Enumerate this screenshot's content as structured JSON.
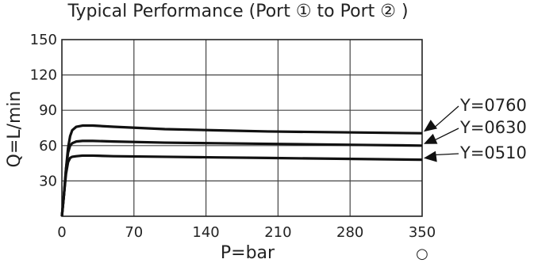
{
  "chart_data": {
    "type": "line",
    "title": "Typical Performance (Port ① to Port ② )",
    "xlabel": "P=bar",
    "ylabel": "Q=L/min",
    "xlim": [
      0,
      350
    ],
    "ylim": [
      0,
      150
    ],
    "x_ticks": [
      "0",
      "70",
      "140",
      "210",
      "280",
      "350"
    ],
    "y_ticks": [
      "30",
      "60",
      "90",
      "120",
      "150"
    ],
    "grid": true,
    "series": [
      {
        "name": "Y=0760",
        "x": [
          0,
          2,
          4,
          6,
          8,
          10,
          14,
          20,
          30,
          50,
          100,
          150,
          200,
          250,
          300,
          350
        ],
        "y": [
          0,
          18,
          40,
          58,
          68,
          73,
          76,
          77,
          77,
          76,
          74,
          73,
          72,
          71.5,
          71,
          70.5
        ],
        "color": "#111111"
      },
      {
        "name": "Y=0630",
        "x": [
          0,
          2,
          4,
          6,
          8,
          10,
          14,
          20,
          30,
          50,
          100,
          150,
          200,
          250,
          300,
          350
        ],
        "y": [
          0,
          18,
          40,
          54,
          60,
          62,
          63.5,
          64,
          64,
          63.5,
          62.5,
          62,
          61.5,
          61,
          60.5,
          60
        ],
        "color": "#111111"
      },
      {
        "name": "Y=0510",
        "x": [
          0,
          2,
          4,
          6,
          8,
          10,
          14,
          20,
          30,
          50,
          100,
          150,
          200,
          250,
          300,
          350
        ],
        "y": [
          0,
          18,
          36,
          46,
          49.5,
          50.5,
          51,
          51.5,
          51.5,
          51,
          50.5,
          50,
          49.5,
          49,
          48.5,
          48
        ],
        "color": "#111111"
      }
    ]
  },
  "footnote_symbol": "○"
}
